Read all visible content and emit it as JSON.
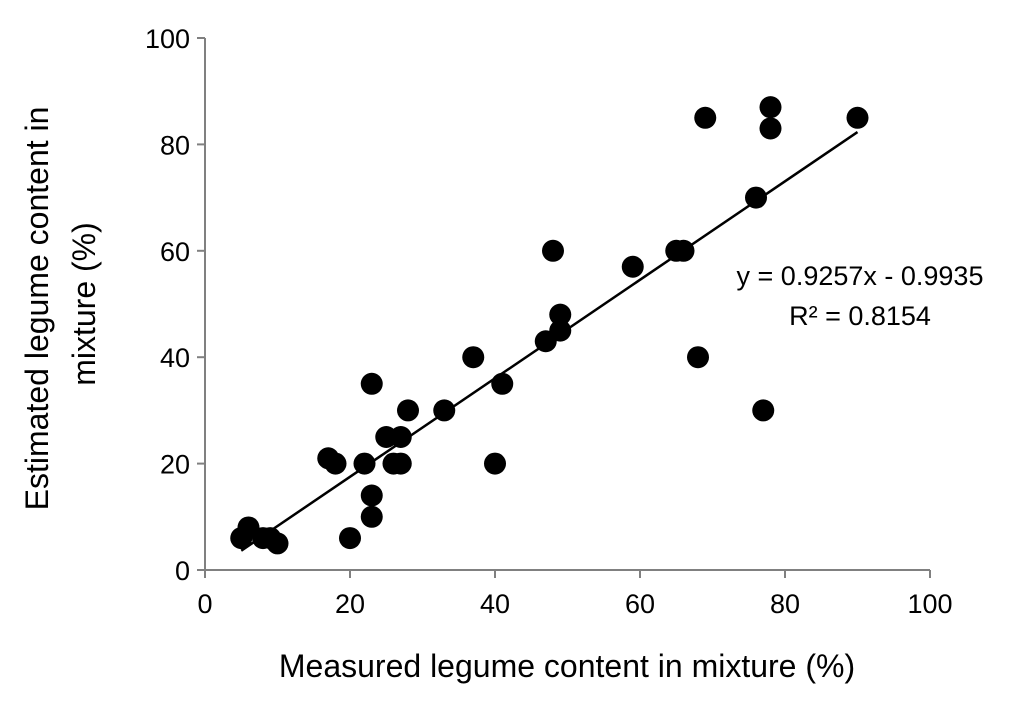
{
  "chart_data": {
    "type": "scatter",
    "title": "",
    "xlabel": "Measured legume content in mixture (%)",
    "ylabel_lines": [
      "Estimated legume content in",
      "mixture (%)"
    ],
    "xlim": [
      0,
      100
    ],
    "ylim": [
      0,
      100
    ],
    "xticks": [
      "0",
      "20",
      "40",
      "60",
      "80",
      "100"
    ],
    "yticks": [
      "0",
      "20",
      "40",
      "60",
      "80",
      "100"
    ],
    "grid": false,
    "legend": "none",
    "marker_color": "#000000",
    "points": [
      {
        "x": 5,
        "y": 6
      },
      {
        "x": 6,
        "y": 8
      },
      {
        "x": 8,
        "y": 6
      },
      {
        "x": 9,
        "y": 6
      },
      {
        "x": 10,
        "y": 5
      },
      {
        "x": 17,
        "y": 21
      },
      {
        "x": 18,
        "y": 20
      },
      {
        "x": 20,
        "y": 6
      },
      {
        "x": 22,
        "y": 20
      },
      {
        "x": 23,
        "y": 35
      },
      {
        "x": 23,
        "y": 14
      },
      {
        "x": 23,
        "y": 10
      },
      {
        "x": 25,
        "y": 25
      },
      {
        "x": 26,
        "y": 20
      },
      {
        "x": 27,
        "y": 25
      },
      {
        "x": 27,
        "y": 20
      },
      {
        "x": 28,
        "y": 30
      },
      {
        "x": 33,
        "y": 30
      },
      {
        "x": 37,
        "y": 40
      },
      {
        "x": 40,
        "y": 20
      },
      {
        "x": 41,
        "y": 35
      },
      {
        "x": 47,
        "y": 43
      },
      {
        "x": 48,
        "y": 60
      },
      {
        "x": 49,
        "y": 48
      },
      {
        "x": 49,
        "y": 45
      },
      {
        "x": 59,
        "y": 57
      },
      {
        "x": 65,
        "y": 60
      },
      {
        "x": 66,
        "y": 60
      },
      {
        "x": 68,
        "y": 40
      },
      {
        "x": 69,
        "y": 85
      },
      {
        "x": 76,
        "y": 70
      },
      {
        "x": 77,
        "y": 30
      },
      {
        "x": 78,
        "y": 87
      },
      {
        "x": 78,
        "y": 83
      },
      {
        "x": 90,
        "y": 85
      }
    ],
    "trendline": {
      "slope": 0.9257,
      "intercept": -0.9935,
      "x_range": [
        5,
        90
      ],
      "equation_label": "y = 0.9257x - 0.9935",
      "r2_label": "R² = 0.8154"
    }
  }
}
